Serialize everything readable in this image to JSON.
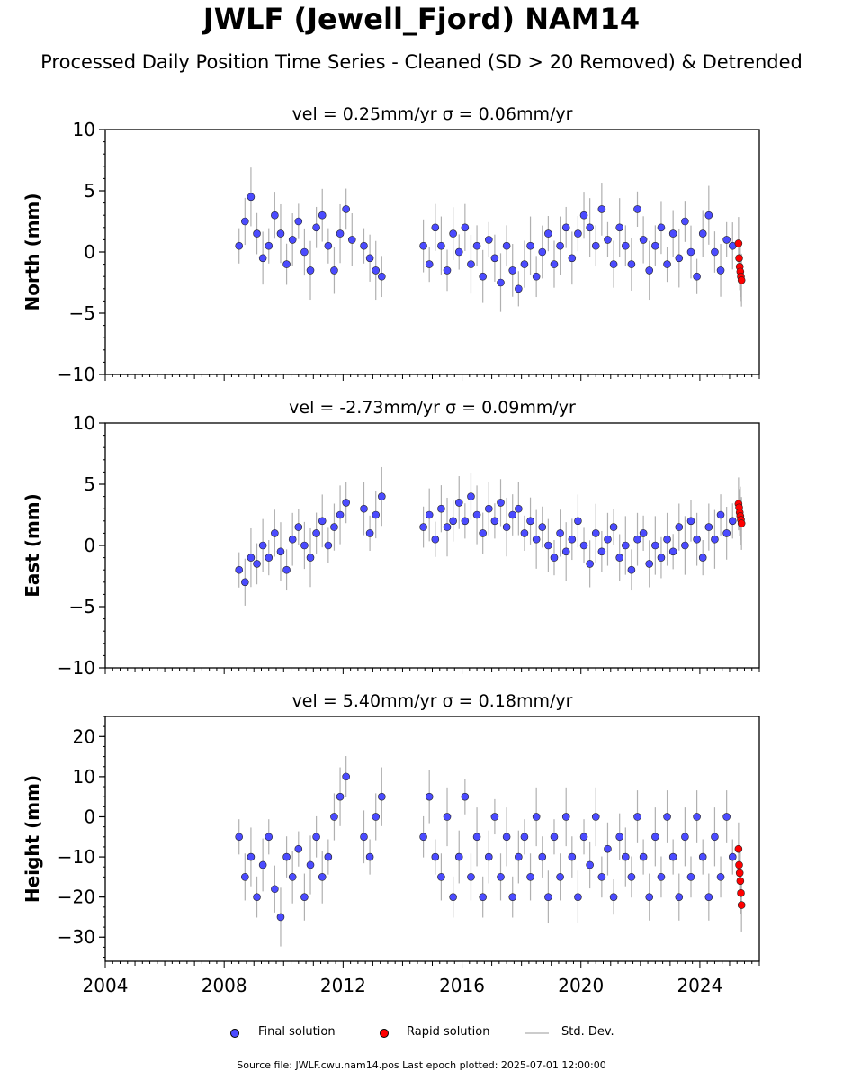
{
  "title": "JWLF (Jewell_Fjord) NAM14",
  "subtitle": "Processed Daily Position Time Series - Cleaned (SD > 20 Removed) & Detrended",
  "source_note": "Source file: JWLF.cwu.nam14.pos  Last epoch plotted: 2025-07-01 12:00:00",
  "legend": [
    {
      "label": "Final solution",
      "color": "#4b4bff"
    },
    {
      "label": "Rapid solution",
      "color": "#ff0000"
    },
    {
      "label": "Std. Dev.",
      "color": "#cccccc"
    }
  ],
  "chart_data": [
    {
      "type": "scatter",
      "title": "vel = 0.25mm/yr   σ = 0.06mm/yr",
      "ylabel": "North (mm)",
      "xlim": [
        2004,
        2026
      ],
      "ylim": [
        -10,
        10
      ],
      "yticks": [
        -10,
        -5,
        0,
        5,
        10
      ],
      "ytick_labels": [
        "−10",
        "−5",
        "0",
        "5",
        "10"
      ],
      "xticks": [
        2004,
        2008,
        2012,
        2016,
        2020,
        2024
      ],
      "series": [
        {
          "name": "Final solution",
          "color": "#4b4bff",
          "x": [
            2008.5,
            2008.7,
            2008.9,
            2009.1,
            2009.3,
            2009.5,
            2009.7,
            2009.9,
            2010.1,
            2010.3,
            2010.5,
            2010.7,
            2010.9,
            2011.1,
            2011.3,
            2011.5,
            2011.7,
            2011.9,
            2012.1,
            2012.3,
            2012.7,
            2012.9,
            2013.1,
            2013.3,
            2014.7,
            2014.9,
            2015.1,
            2015.3,
            2015.5,
            2015.7,
            2015.9,
            2016.1,
            2016.3,
            2016.5,
            2016.7,
            2016.9,
            2017.1,
            2017.3,
            2017.5,
            2017.7,
            2017.9,
            2018.1,
            2018.3,
            2018.5,
            2018.7,
            2018.9,
            2019.1,
            2019.3,
            2019.5,
            2019.7,
            2019.9,
            2020.1,
            2020.3,
            2020.5,
            2020.7,
            2020.9,
            2021.1,
            2021.3,
            2021.5,
            2021.7,
            2021.9,
            2022.1,
            2022.3,
            2022.5,
            2022.7,
            2022.9,
            2023.1,
            2023.3,
            2023.5,
            2023.7,
            2023.9,
            2024.1,
            2024.3,
            2024.5,
            2024.7,
            2024.9,
            2025.1
          ],
          "y": [
            0.5,
            2.5,
            4.5,
            1.5,
            -0.5,
            0.5,
            3.0,
            1.5,
            -1.0,
            1.0,
            2.5,
            0.0,
            -1.5,
            2.0,
            3.0,
            0.5,
            -1.5,
            1.5,
            3.5,
            1.0,
            0.5,
            -0.5,
            -1.5,
            -2.0,
            0.5,
            -1.0,
            2.0,
            0.5,
            -1.5,
            1.5,
            0.0,
            2.0,
            -1.0,
            0.5,
            -2.0,
            1.0,
            -0.5,
            -2.5,
            0.5,
            -1.5,
            -3.0,
            -1.0,
            0.5,
            -2.0,
            0.0,
            1.5,
            -1.0,
            0.5,
            2.0,
            -0.5,
            1.5,
            3.0,
            2.0,
            0.5,
            3.5,
            1.0,
            -1.0,
            2.0,
            0.5,
            -1.0,
            3.5,
            1.0,
            -1.5,
            0.5,
            2.0,
            -1.0,
            1.5,
            -0.5,
            2.5,
            0.0,
            -2.0,
            1.5,
            3.0,
            0.0,
            -1.5,
            1.0,
            0.5
          ]
        },
        {
          "name": "Rapid solution",
          "color": "#ff0000",
          "x": [
            2025.3,
            2025.32,
            2025.34,
            2025.36,
            2025.38,
            2025.4
          ],
          "y": [
            0.7,
            -0.5,
            -1.2,
            -1.6,
            -2.0,
            -2.3
          ]
        }
      ]
    },
    {
      "type": "scatter",
      "title": "vel = -2.73mm/yr   σ = 0.09mm/yr",
      "ylabel": "East (mm)",
      "xlim": [
        2004,
        2026
      ],
      "ylim": [
        -10,
        10
      ],
      "yticks": [
        -10,
        -5,
        0,
        5,
        10
      ],
      "ytick_labels": [
        "−10",
        "−5",
        "0",
        "5",
        "10"
      ],
      "xticks": [
        2004,
        2008,
        2012,
        2016,
        2020,
        2024
      ],
      "series": [
        {
          "name": "Final solution",
          "color": "#4b4bff",
          "x": [
            2008.5,
            2008.7,
            2008.9,
            2009.1,
            2009.3,
            2009.5,
            2009.7,
            2009.9,
            2010.1,
            2010.3,
            2010.5,
            2010.7,
            2010.9,
            2011.1,
            2011.3,
            2011.5,
            2011.7,
            2011.9,
            2012.1,
            2012.7,
            2012.9,
            2013.1,
            2013.3,
            2014.7,
            2014.9,
            2015.1,
            2015.3,
            2015.5,
            2015.7,
            2015.9,
            2016.1,
            2016.3,
            2016.5,
            2016.7,
            2016.9,
            2017.1,
            2017.3,
            2017.5,
            2017.7,
            2017.9,
            2018.1,
            2018.3,
            2018.5,
            2018.7,
            2018.9,
            2019.1,
            2019.3,
            2019.5,
            2019.7,
            2019.9,
            2020.1,
            2020.3,
            2020.5,
            2020.7,
            2020.9,
            2021.1,
            2021.3,
            2021.5,
            2021.7,
            2021.9,
            2022.1,
            2022.3,
            2022.5,
            2022.7,
            2022.9,
            2023.1,
            2023.3,
            2023.5,
            2023.7,
            2023.9,
            2024.1,
            2024.3,
            2024.5,
            2024.7,
            2024.9,
            2025.1
          ],
          "y": [
            -2.0,
            -3.0,
            -1.0,
            -1.5,
            0.0,
            -1.0,
            1.0,
            -0.5,
            -2.0,
            0.5,
            1.5,
            0.0,
            -1.0,
            1.0,
            2.0,
            0.0,
            1.5,
            2.5,
            3.5,
            3.0,
            1.0,
            2.5,
            4.0,
            1.5,
            2.5,
            0.5,
            3.0,
            1.5,
            2.0,
            3.5,
            2.0,
            4.0,
            2.5,
            1.0,
            3.0,
            2.0,
            3.5,
            1.5,
            2.5,
            3.0,
            1.0,
            2.0,
            0.5,
            1.5,
            0.0,
            -1.0,
            1.0,
            -0.5,
            0.5,
            2.0,
            0.0,
            -1.5,
            1.0,
            -0.5,
            0.5,
            1.5,
            -1.0,
            0.0,
            -2.0,
            0.5,
            1.0,
            -1.5,
            0.0,
            -1.0,
            0.5,
            -0.5,
            1.5,
            0.0,
            2.0,
            0.5,
            -1.0,
            1.5,
            0.5,
            2.5,
            1.0,
            2.0
          ]
        },
        {
          "name": "Rapid solution",
          "color": "#ff0000",
          "x": [
            2025.3,
            2025.32,
            2025.34,
            2025.36,
            2025.38,
            2025.4
          ],
          "y": [
            3.4,
            3.1,
            2.7,
            2.4,
            2.1,
            1.8
          ]
        }
      ]
    },
    {
      "type": "scatter",
      "title": "vel = 5.40mm/yr   σ = 0.18mm/yr",
      "ylabel": "Height (mm)",
      "xlim": [
        2004,
        2026
      ],
      "ylim": [
        -36,
        25
      ],
      "yticks": [
        -30,
        -20,
        -10,
        0,
        10,
        20
      ],
      "ytick_labels": [
        "−30",
        "−20",
        "−10",
        "0",
        "10",
        "20"
      ],
      "xticks": [
        2004,
        2008,
        2012,
        2016,
        2020,
        2024
      ],
      "xtick_labels": [
        "2004",
        "2008",
        "2012",
        "2016",
        "2020",
        "2024"
      ],
      "series": [
        {
          "name": "Final solution",
          "color": "#4b4bff",
          "x": [
            2008.5,
            2008.7,
            2008.9,
            2009.1,
            2009.3,
            2009.5,
            2009.7,
            2009.9,
            2010.1,
            2010.3,
            2010.5,
            2010.7,
            2010.9,
            2011.1,
            2011.3,
            2011.5,
            2011.7,
            2011.9,
            2012.1,
            2012.7,
            2012.9,
            2013.1,
            2013.3,
            2014.7,
            2014.9,
            2015.1,
            2015.3,
            2015.5,
            2015.7,
            2015.9,
            2016.1,
            2016.3,
            2016.5,
            2016.7,
            2016.9,
            2017.1,
            2017.3,
            2017.5,
            2017.7,
            2017.9,
            2018.1,
            2018.3,
            2018.5,
            2018.7,
            2018.9,
            2019.1,
            2019.3,
            2019.5,
            2019.7,
            2019.9,
            2020.1,
            2020.3,
            2020.5,
            2020.7,
            2020.9,
            2021.1,
            2021.3,
            2021.5,
            2021.7,
            2021.9,
            2022.1,
            2022.3,
            2022.5,
            2022.7,
            2022.9,
            2023.1,
            2023.3,
            2023.5,
            2023.7,
            2023.9,
            2024.1,
            2024.3,
            2024.5,
            2024.7,
            2024.9,
            2025.1
          ],
          "y": [
            -5,
            -15,
            -10,
            -20,
            -12,
            -5,
            -18,
            -25,
            -10,
            -15,
            -8,
            -20,
            -12,
            -5,
            -15,
            -10,
            0,
            5,
            10,
            -5,
            -10,
            0,
            5,
            -5,
            5,
            -10,
            -15,
            0,
            -20,
            -10,
            5,
            -15,
            -5,
            -20,
            -10,
            0,
            -15,
            -5,
            -20,
            -10,
            -5,
            -15,
            0,
            -10,
            -20,
            -5,
            -15,
            0,
            -10,
            -20,
            -5,
            -12,
            0,
            -15,
            -8,
            -20,
            -5,
            -10,
            -15,
            0,
            -10,
            -20,
            -5,
            -15,
            0,
            -10,
            -20,
            -5,
            -15,
            0,
            -10,
            -20,
            -5,
            -15,
            0,
            -10
          ]
        },
        {
          "name": "Rapid solution",
          "color": "#ff0000",
          "x": [
            2025.3,
            2025.32,
            2025.34,
            2025.36,
            2025.38,
            2025.4
          ],
          "y": [
            -8,
            -12,
            -14,
            -16,
            -19,
            -22
          ]
        }
      ]
    }
  ]
}
